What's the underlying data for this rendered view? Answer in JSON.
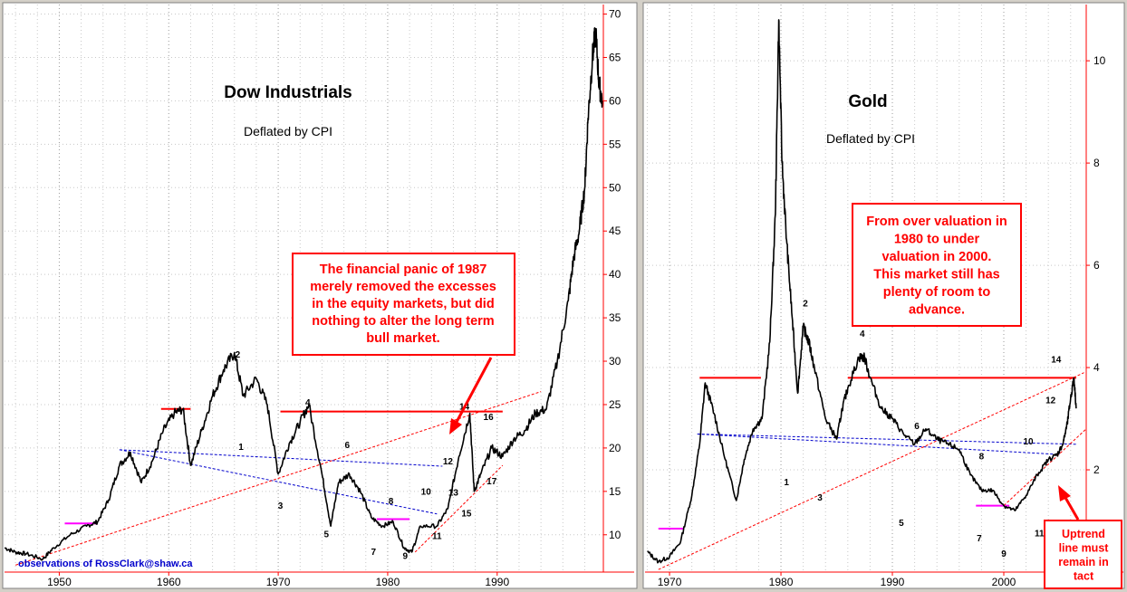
{
  "chart_data": [
    {
      "type": "line",
      "title": "Dow Industrials",
      "subtitle": "Deflated by CPI",
      "xlim": [
        1945.0,
        1999.7
      ],
      "ylim": [
        5.7,
        71.1
      ],
      "y_ticks": [
        10,
        15,
        20,
        25,
        30,
        35,
        40,
        45,
        50,
        55,
        60,
        65,
        70
      ],
      "x_ticks": [
        1950,
        1960,
        1970,
        1980,
        1990
      ],
      "grid": true,
      "colors": {
        "price": "#000000",
        "resistance": "#ff0000",
        "support_marker": "#ff00ff",
        "downtrend": "#0000cc",
        "uptrend": "#ff0000"
      },
      "series": [
        {
          "x": [
            1945.0,
            1946.0,
            1947.0,
            1948.5,
            1949.5,
            1951.0,
            1952.5,
            1953.5,
            1954.5,
            1955.5,
            1956.5,
            1957.5,
            1958.5,
            1959.5,
            1960.5,
            1961.3,
            1962.0,
            1963.0,
            1964.0,
            1965.0,
            1966.0,
            1966.8,
            1968.0,
            1969.0,
            1970.0,
            1971.0,
            1972.0,
            1972.8,
            1974.0,
            1974.8,
            1975.5,
            1976.5,
            1977.5,
            1978.5,
            1979.5,
            1980.5,
            1981.5,
            1982.2,
            1983.0,
            1984.5,
            1985.5,
            1986.5,
            1987.5,
            1987.9,
            1988.5,
            1989.5,
            1990.5,
            1991.5,
            1992.5,
            1993.5,
            1994.5,
            1995.5,
            1996.5,
            1997.0,
            1997.5,
            1998.0,
            1998.3,
            1998.7,
            1999.0,
            1999.3,
            1999.6
          ],
          "values": [
            8.5,
            8.0,
            7.8,
            7.2,
            8.5,
            10.0,
            11.0,
            11.5,
            14.0,
            18.0,
            19.5,
            16.0,
            18.5,
            22.0,
            24.0,
            24.5,
            18.0,
            22.0,
            26.0,
            29.0,
            31.0,
            26.0,
            28.0,
            25.0,
            17.0,
            20.5,
            23.0,
            25.0,
            17.0,
            11.0,
            16.0,
            17.0,
            15.0,
            12.0,
            11.0,
            11.5,
            8.5,
            8.0,
            11.0,
            11.0,
            13.0,
            19.0,
            24.0,
            15.0,
            17.0,
            20.0,
            19.0,
            21.0,
            22.0,
            24.0,
            24.5,
            30.0,
            37.0,
            42.0,
            45.0,
            50.0,
            58.0,
            65.0,
            68.0,
            62.0,
            60.0
          ]
        }
      ],
      "labels": [
        "1",
        "2",
        "3",
        "4",
        "5",
        "6",
        "7",
        "8",
        "9",
        "10",
        "11",
        "12",
        "13",
        "14",
        "15",
        "16",
        "17"
      ],
      "callout": "The financial panic of 1987 merely removed the excesses in the equity markets, but did nothing to alter the long term bull market.",
      "credit": "observations of RossClark@shaw.ca"
    },
    {
      "type": "line",
      "title": "Gold",
      "subtitle": "Deflated by CPI",
      "xlim": [
        1967.8,
        2007.4
      ],
      "ylim": [
        0.0,
        11.1
      ],
      "y_ticks": [
        2,
        4,
        6,
        8,
        10
      ],
      "x_ticks": [
        1970,
        1980,
        1990,
        2000
      ],
      "grid": true,
      "colors": {
        "price": "#000000",
        "resistance": "#ff0000",
        "support_marker": "#ff00ff",
        "downtrend": "#0000cc",
        "uptrend": "#ff0000"
      },
      "series": [
        {
          "x": [
            1968.0,
            1969.0,
            1970.0,
            1971.0,
            1972.0,
            1972.7,
            1973.2,
            1974.0,
            1975.0,
            1976.0,
            1976.7,
            1977.5,
            1978.3,
            1979.0,
            1979.5,
            1979.8,
            1980.1,
            1980.5,
            1981.0,
            1981.5,
            1982.0,
            1982.5,
            1983.0,
            1984.0,
            1985.0,
            1985.5,
            1986.0,
            1987.0,
            1987.5,
            1988.0,
            1989.0,
            1990.0,
            1991.0,
            1992.0,
            1993.0,
            1994.0,
            1995.0,
            1996.0,
            1997.0,
            1998.0,
            1999.0,
            2000.0,
            2001.0,
            2002.0,
            2003.0,
            2004.0,
            2004.8,
            2005.3,
            2005.7,
            2006.0,
            2006.3,
            2006.5
          ],
          "values": [
            0.4,
            0.2,
            0.3,
            0.6,
            1.5,
            2.5,
            3.7,
            3.1,
            2.2,
            1.4,
            2.2,
            2.8,
            3.0,
            4.5,
            7.0,
            10.8,
            8.0,
            6.5,
            5.0,
            3.5,
            4.8,
            4.5,
            4.0,
            3.0,
            2.6,
            3.2,
            3.6,
            4.2,
            4.2,
            3.8,
            3.2,
            3.0,
            2.7,
            2.5,
            2.8,
            2.6,
            2.5,
            2.4,
            1.9,
            1.6,
            1.6,
            1.3,
            1.2,
            1.5,
            1.9,
            2.2,
            2.3,
            2.5,
            2.9,
            3.4,
            3.8,
            3.2
          ]
        }
      ],
      "labels": [
        "1",
        "2",
        "3",
        "4",
        "5",
        "6",
        "7",
        "8",
        "9",
        "10",
        "11",
        "12",
        "14"
      ],
      "callout": "From over valuation in 1980 to under valuation in 2000. This market still has plenty of room to advance.",
      "annotation": "Uptrend line must remain in tact"
    }
  ],
  "left": {
    "title": "Dow Industrials",
    "subtitle": "Deflated by CPI",
    "callout_lines": [
      "The financial panic of 1987",
      "merely removed the excesses",
      "in the equity markets, but did",
      "nothing to alter the long term",
      "bull market."
    ],
    "credit": "observations of RossClark@shaw.ca",
    "y_tick_labels": [
      "10",
      "15",
      "20",
      "25",
      "30",
      "35",
      "40",
      "45",
      "50",
      "55",
      "60",
      "65",
      "70"
    ],
    "x_tick_labels": [
      "1950",
      "1960",
      "1970",
      "1980",
      "1990"
    ],
    "wave_labels": [
      "1",
      "2",
      "3",
      "4",
      "5",
      "6",
      "7",
      "8",
      "9",
      "10",
      "11",
      "12",
      "13",
      "14",
      "15",
      "16",
      "17"
    ]
  },
  "right": {
    "title": "Gold",
    "subtitle": "Deflated by CPI",
    "callout_lines": [
      "From over valuation in",
      "1980 to under",
      "valuation in 2000.",
      "This market still has",
      "plenty of room to",
      "advance."
    ],
    "note_lines": [
      "Uptrend",
      "line must",
      "remain in",
      "tact"
    ],
    "y_tick_labels": [
      "2",
      "4",
      "6",
      "8",
      "10"
    ],
    "x_tick_labels": [
      "1970",
      "1980",
      "1990",
      "2000"
    ],
    "wave_labels": [
      "1",
      "2",
      "3",
      "4",
      "5",
      "6",
      "7",
      "8",
      "9",
      "10",
      "11",
      "12",
      "14"
    ]
  }
}
